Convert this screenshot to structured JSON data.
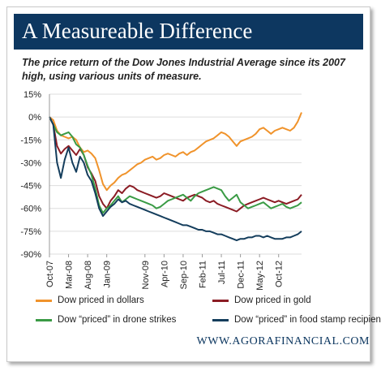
{
  "header": {
    "title": "A Measureable Difference",
    "subtitle": "The price return of the Dow Jones Industrial Average since its 2007 high, using various units of measure."
  },
  "footer": {
    "website": "WWW.AGORAFINANCIAL.COM"
  },
  "colors": {
    "title_bar": "#0d3760",
    "axis": "#999999",
    "grid": "#dddddd"
  },
  "chart_data": {
    "type": "line",
    "xlabel": "",
    "ylabel": "",
    "ylim": [
      -90,
      15
    ],
    "yticks": [
      15,
      0,
      -15,
      -30,
      -45,
      -60,
      -75,
      -90
    ],
    "ytick_labels": [
      "15%",
      "0%",
      "-15%",
      "-30%",
      "-45%",
      "-60%",
      "-75%",
      "-90%"
    ],
    "xtick_labels": [
      "Oct-07",
      "Mar-08",
      "Aug-08",
      "Jan-09",
      "Nov-09",
      "Apr-10",
      "Sep-10",
      "Feb-11",
      "Jul-11",
      "Dec-11",
      "May-12",
      "Oct-12"
    ],
    "xtick_index": [
      0,
      5,
      10,
      15,
      25,
      30,
      35,
      40,
      45,
      50,
      55,
      60
    ],
    "x_count": 67,
    "legend_position": "bottom",
    "series": [
      {
        "name": "Dow priced in dollars",
        "color": "#f0932b",
        "values": [
          0,
          -2,
          -9,
          -12,
          -13,
          -14,
          -13,
          -15,
          -20,
          -23,
          -22,
          -24,
          -27,
          -35,
          -44,
          -48,
          -45,
          -43,
          -40,
          -38,
          -37,
          -35,
          -33,
          -31,
          -30,
          -28,
          -27,
          -26,
          -28,
          -27,
          -25,
          -24,
          -25,
          -26,
          -24,
          -23,
          -25,
          -23,
          -22,
          -20,
          -18,
          -16,
          -15,
          -14,
          -12,
          -10,
          -11,
          -13,
          -16,
          -19,
          -16,
          -15,
          -14,
          -13,
          -11,
          -8,
          -7,
          -9,
          -11,
          -9,
          -8,
          -7,
          -8,
          -9,
          -7,
          -3,
          3
        ]
      },
      {
        "name": "Dow priced in gold",
        "color": "#8b1c24",
        "values": [
          0,
          -5,
          -19,
          -24,
          -21,
          -19,
          -22,
          -25,
          -21,
          -25,
          -33,
          -37,
          -42,
          -52,
          -57,
          -60,
          -55,
          -52,
          -48,
          -50,
          -47,
          -45,
          -46,
          -48,
          -49,
          -50,
          -51,
          -52,
          -53,
          -52,
          -50,
          -51,
          -52,
          -53,
          -54,
          -55,
          -53,
          -52,
          -51,
          -52,
          -53,
          -55,
          -56,
          -55,
          -57,
          -58,
          -59,
          -60,
          -61,
          -62,
          -60,
          -58,
          -57,
          -56,
          -55,
          -54,
          -53,
          -54,
          -55,
          -56,
          -55,
          -56,
          -57,
          -56,
          -55,
          -54,
          -51
        ]
      },
      {
        "name": "Dow “priced” in drone strikes",
        "color": "#3a9b45",
        "values": [
          0,
          -5,
          -10,
          -12,
          -11,
          -10,
          -13,
          -18,
          -20,
          -25,
          -32,
          -38,
          -47,
          -58,
          -63,
          -60,
          -58,
          -55,
          -52,
          -56,
          -54,
          -52,
          -53,
          -54,
          -55,
          -56,
          -57,
          -58,
          -60,
          -59,
          -57,
          -55,
          -54,
          -53,
          -52,
          -51,
          -53,
          -55,
          -52,
          -50,
          -49,
          -48,
          -47,
          -46,
          -47,
          -48,
          -52,
          -55,
          -53,
          -51,
          -56,
          -58,
          -60,
          -59,
          -58,
          -57,
          -56,
          -58,
          -60,
          -59,
          -58,
          -57,
          -59,
          -60,
          -59,
          -58,
          -56
        ]
      },
      {
        "name": "Dow “priced” in food stamp recipients",
        "color": "#143d5c",
        "values": [
          0,
          -5,
          -30,
          -40,
          -28,
          -20,
          -30,
          -36,
          -26,
          -30,
          -38,
          -42,
          -50,
          -60,
          -65,
          -62,
          -59,
          -57,
          -54,
          -56,
          -55,
          -57,
          -58,
          -59,
          -60,
          -61,
          -62,
          -63,
          -64,
          -65,
          -66,
          -67,
          -68,
          -69,
          -70,
          -71,
          -71,
          -72,
          -73,
          -74,
          -74,
          -75,
          -75,
          -76,
          -77,
          -77,
          -78,
          -79,
          -80,
          -81,
          -80,
          -80,
          -79,
          -79,
          -78,
          -78,
          -79,
          -78,
          -79,
          -80,
          -80,
          -80,
          -79,
          -79,
          -78,
          -77,
          -75
        ]
      }
    ]
  }
}
